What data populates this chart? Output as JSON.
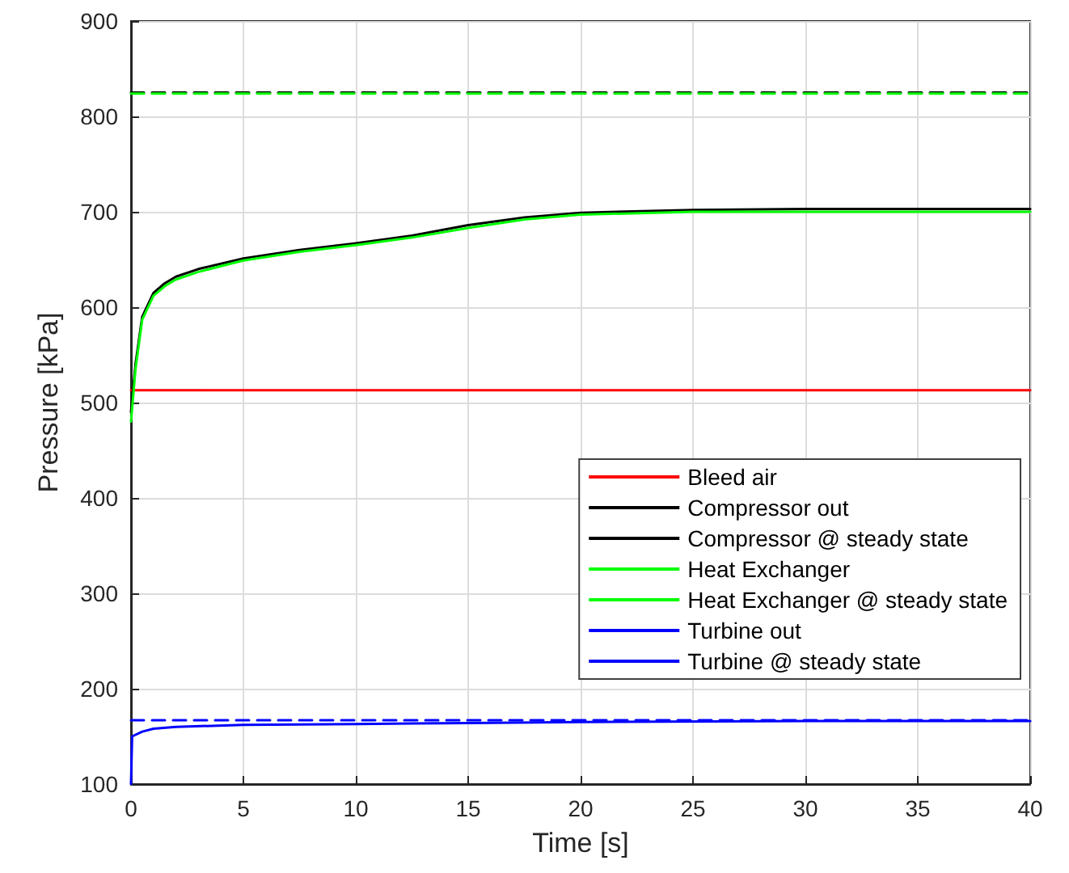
{
  "chart_data": {
    "type": "line",
    "xlabel": "Time [s]",
    "ylabel": "Pressure [kPa]",
    "xlim": [
      0,
      40
    ],
    "xticks": [
      0,
      5,
      10,
      15,
      20,
      25,
      30,
      35,
      40
    ],
    "ylim": [
      100,
      900
    ],
    "yticks": [
      100,
      200,
      300,
      400,
      500,
      600,
      700,
      800,
      900
    ],
    "grid": true,
    "legend": "bottom right",
    "marker": "none",
    "series": [
      {
        "name": "Bleed air",
        "color": "#ff0000",
        "line_style": "solid",
        "x": [
          0,
          40
        ],
        "values": [
          513,
          513
        ]
      },
      {
        "name": "Compressor out",
        "color": "#000000",
        "line_style": "solid",
        "x": [
          0,
          0.2,
          0.5,
          1,
          1.5,
          2,
          3,
          5,
          7.5,
          10,
          12.5,
          15,
          17.5,
          20,
          25,
          30,
          40
        ],
        "values": [
          490,
          540,
          590,
          615,
          625,
          632,
          640,
          651,
          660,
          667,
          675,
          686,
          694,
          699,
          702,
          703,
          703
        ]
      },
      {
        "name": "Compressor @ steady state",
        "color": "#000000",
        "line_style": "dashed",
        "x": [
          0,
          40
        ],
        "values": [
          825,
          825
        ]
      },
      {
        "name": "Heat Exchanger",
        "color": "#00ff00",
        "line_style": "solid",
        "x": [
          0,
          0.2,
          0.5,
          1,
          1.5,
          2,
          3,
          5,
          7.5,
          10,
          12.5,
          15,
          17.5,
          20,
          25,
          30,
          40
        ],
        "values": [
          480,
          535,
          587,
          612,
          622,
          629,
          637,
          649,
          658,
          665,
          673,
          683,
          692,
          697,
          700,
          700,
          700
        ]
      },
      {
        "name": "Heat Exchanger @ steady state",
        "color": "#00ff00",
        "line_style": "dashed",
        "x": [
          0,
          40
        ],
        "values": [
          824,
          824
        ]
      },
      {
        "name": "Turbine out",
        "color": "#0000ff",
        "line_style": "solid",
        "x": [
          0,
          0.05,
          0.5,
          1,
          2,
          5,
          10,
          15,
          20,
          30,
          40
        ],
        "values": [
          100,
          150,
          155,
          158,
          160,
          162,
          163,
          164,
          165,
          166,
          166
        ]
      },
      {
        "name": "Turbine @ steady state",
        "color": "#0000ff",
        "line_style": "dashed",
        "x": [
          0,
          40
        ],
        "values": [
          167,
          167
        ]
      }
    ]
  }
}
